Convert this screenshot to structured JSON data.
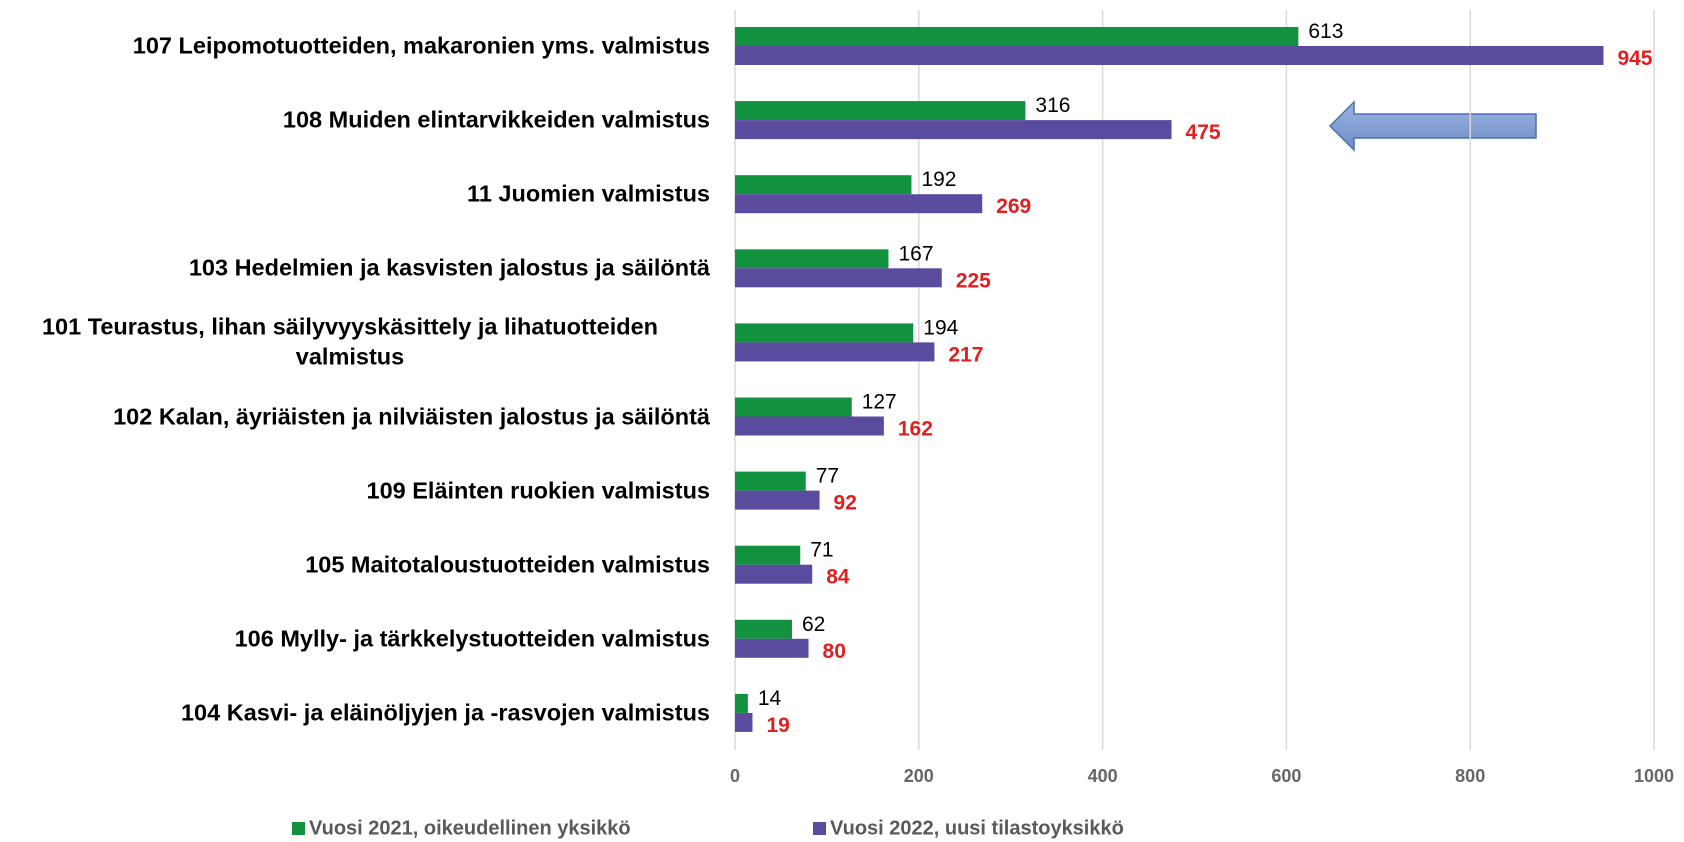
{
  "chart_data": {
    "type": "bar",
    "orientation": "horizontal",
    "categories": [
      "107 Leipomotuotteiden, makaronien yms. valmistus",
      "108 Muiden elintarvikkeiden valmistus",
      "11 Juomien valmistus",
      "103 Hedelmien ja kasvisten jalostus ja säilöntä",
      "101 Teurastus, lihan säilyvyyskäsittely ja lihatuotteiden valmistus",
      "102 Kalan, äyriäisten ja nilviäisten jalostus ja säilöntä",
      "109 Eläinten ruokien valmistus",
      "105 Maitotaloustuotteiden valmistus",
      "106 Mylly- ja tärkkelystuotteiden valmistus",
      "104 Kasvi- ja eläinöljyjen ja -rasvojen valmistus"
    ],
    "series": [
      {
        "name": "Vuosi 2021, oikeudellinen yksikkö",
        "color": "#12923e",
        "values": [
          613,
          316,
          192,
          167,
          194,
          127,
          77,
          71,
          62,
          14
        ]
      },
      {
        "name": "Vuosi 2022, uusi tilastoyksikkö",
        "color": "#5b4b9e",
        "values": [
          945,
          475,
          269,
          225,
          217,
          162,
          92,
          84,
          80,
          19
        ]
      }
    ],
    "xlim": [
      0,
      1000
    ],
    "xticks": [
      0,
      200,
      400,
      600,
      800,
      1000
    ],
    "grid": true,
    "legend": "bottom"
  }
}
